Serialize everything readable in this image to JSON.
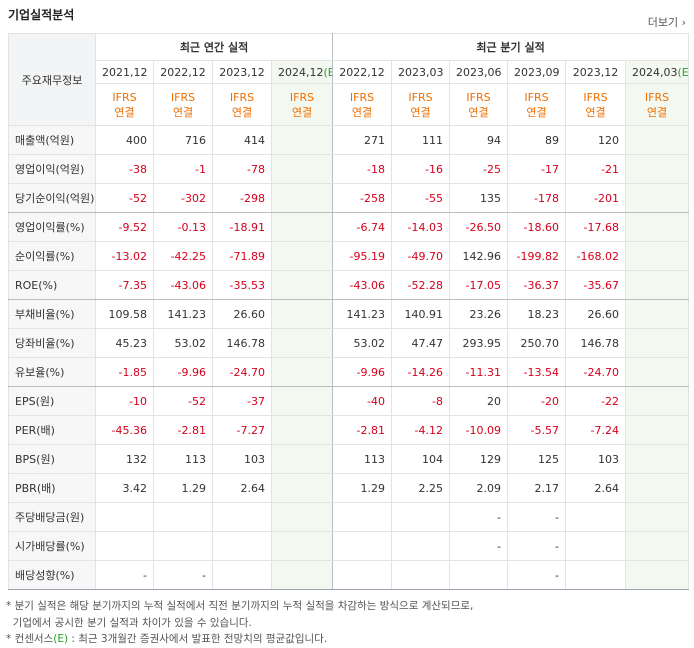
{
  "header": {
    "title": "기업실적분석",
    "more": "더보기"
  },
  "table": {
    "corner": "주요재무정보",
    "groups": [
      {
        "label": "최근 연간 실적",
        "span": 4
      },
      {
        "label": "최근 분기 실적",
        "span": 6
      }
    ],
    "columns": [
      {
        "period": "2021,12",
        "basis": "IFRS",
        "scope": "연결"
      },
      {
        "period": "2022,12",
        "basis": "IFRS",
        "scope": "연결"
      },
      {
        "period": "2023,12",
        "basis": "IFRS",
        "scope": "연결"
      },
      {
        "period": "2024,12",
        "estimate": "(E)",
        "basis": "IFRS",
        "scope": "연결"
      },
      {
        "period": "2022,12",
        "basis": "IFRS",
        "scope": "연결"
      },
      {
        "period": "2023,03",
        "basis": "IFRS",
        "scope": "연결"
      },
      {
        "period": "2023,06",
        "basis": "IFRS",
        "scope": "연결"
      },
      {
        "period": "2023,09",
        "basis": "IFRS",
        "scope": "연결"
      },
      {
        "period": "2023,12",
        "basis": "IFRS",
        "scope": "연결"
      },
      {
        "period": "2024,03",
        "estimate": "(E)",
        "basis": "IFRS",
        "scope": "연결"
      }
    ],
    "rows": [
      {
        "label": "매출액(억원)",
        "values": [
          "400",
          "716",
          "414",
          null,
          "271",
          "111",
          "94",
          "89",
          "120",
          null
        ]
      },
      {
        "label": "영업이익(억원)",
        "values": [
          "-38",
          "-1",
          "-78",
          null,
          "-18",
          "-16",
          "-25",
          "-17",
          "-21",
          null
        ]
      },
      {
        "label": "당기순이익(억원)",
        "values": [
          "-52",
          "-302",
          "-298",
          null,
          "-258",
          "-55",
          "135",
          "-178",
          "-201",
          null
        ]
      },
      {
        "label": "영업이익률(%)",
        "values": [
          "-9.52",
          "-0.13",
          "-18.91",
          null,
          "-6.74",
          "-14.03",
          "-26.50",
          "-18.60",
          "-17.68",
          null
        ]
      },
      {
        "label": "순이익률(%)",
        "values": [
          "-13.02",
          "-42.25",
          "-71.89",
          null,
          "-95.19",
          "-49.70",
          "142.96",
          "-199.82",
          "-168.02",
          null
        ]
      },
      {
        "label": "ROE(%)",
        "values": [
          "-7.35",
          "-43.06",
          "-35.53",
          null,
          "-43.06",
          "-52.28",
          "-17.05",
          "-36.37",
          "-35.67",
          null
        ]
      },
      {
        "label": "부채비율(%)",
        "values": [
          "109.58",
          "141.23",
          "26.60",
          null,
          "141.23",
          "140.91",
          "23.26",
          "18.23",
          "26.60",
          null
        ]
      },
      {
        "label": "당좌비율(%)",
        "values": [
          "45.23",
          "53.02",
          "146.78",
          null,
          "53.02",
          "47.47",
          "293.95",
          "250.70",
          "146.78",
          null
        ]
      },
      {
        "label": "유보율(%)",
        "values": [
          "-1.85",
          "-9.96",
          "-24.70",
          null,
          "-9.96",
          "-14.26",
          "-11.31",
          "-13.54",
          "-24.70",
          null
        ]
      },
      {
        "label": "EPS(원)",
        "values": [
          "-10",
          "-52",
          "-37",
          null,
          "-40",
          "-8",
          "20",
          "-20",
          "-22",
          null
        ]
      },
      {
        "label": "PER(배)",
        "values": [
          "-45.36",
          "-2.81",
          "-7.27",
          null,
          "-2.81",
          "-4.12",
          "-10.09",
          "-5.57",
          "-7.24",
          null
        ]
      },
      {
        "label": "BPS(원)",
        "values": [
          "132",
          "113",
          "103",
          null,
          "113",
          "104",
          "129",
          "125",
          "103",
          null
        ]
      },
      {
        "label": "PBR(배)",
        "values": [
          "3.42",
          "1.29",
          "2.64",
          null,
          "1.29",
          "2.25",
          "2.09",
          "2.17",
          "2.64",
          null
        ]
      },
      {
        "label": "주당배당금(원)",
        "values": [
          null,
          null,
          null,
          null,
          null,
          null,
          "-",
          "-",
          null,
          null
        ]
      },
      {
        "label": "시가배당률(%)",
        "values": [
          null,
          null,
          null,
          null,
          null,
          null,
          "-",
          "-",
          null,
          null
        ]
      },
      {
        "label": "배당성향(%)",
        "values": [
          "-",
          "-",
          null,
          null,
          null,
          null,
          null,
          "-",
          null,
          null
        ]
      }
    ]
  },
  "notes": [
    [
      "* 분기 실적은 해당 분기까지의 누적 실적에서 직전 분기까지의 누적 실적을 차감하는 방식으로 계산되므로,"
    ],
    [
      "  기업에서 공시한 분기 실적과 차이가 있을 수 있습니다."
    ],
    [
      "* 컨센서스",
      "(E)",
      " : 최근 3개월간 증권사에서 발표한 전망치의 평균값입니다."
    ]
  ]
}
